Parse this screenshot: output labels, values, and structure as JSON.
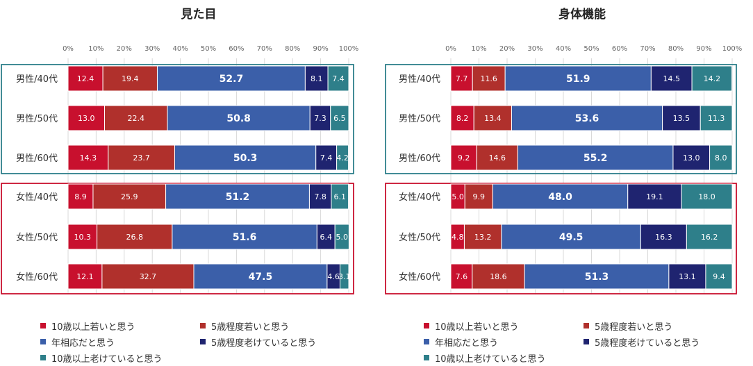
{
  "chart_data": [
    {
      "type": "bar",
      "orientation": "horizontal",
      "stacked": true,
      "title": "見た目",
      "categories": [
        "男性/40代",
        "男性/50代",
        "男性/60代",
        "女性/40代",
        "女性/50代",
        "女性/60代"
      ],
      "groups": [
        {
          "name": "男性",
          "categories": [
            "男性/40代",
            "男性/50代",
            "男性/60代"
          ],
          "border_color": "#2e7f8a"
        },
        {
          "name": "女性",
          "categories": [
            "女性/40代",
            "女性/50代",
            "女性/60代"
          ],
          "border_color": "#c8102e"
        }
      ],
      "x_ticks": [
        "0%",
        "10%",
        "20%",
        "30%",
        "40%",
        "50%",
        "60%",
        "70%",
        "80%",
        "90%",
        "100%"
      ],
      "xlim": [
        0,
        100
      ],
      "series": [
        {
          "name": "10歳以上若いと思う",
          "color": "#c8102e",
          "values": [
            12.4,
            13.0,
            14.3,
            8.9,
            10.3,
            12.1
          ],
          "labels": [
            "12.4",
            "13.0",
            "14.3",
            "8.9",
            "10.3",
            "12.1"
          ]
        },
        {
          "name": "5歳程度若いと思う",
          "color": "#b0302c",
          "values": [
            19.4,
            22.4,
            23.7,
            25.9,
            26.8,
            32.7
          ],
          "labels": [
            "19.4",
            "22.4",
            "23.7",
            "25.9",
            "26.8",
            "32.7"
          ]
        },
        {
          "name": "年相応だと思う",
          "color": "#3b5fa9",
          "values": [
            52.7,
            50.8,
            50.3,
            51.2,
            51.6,
            47.5
          ],
          "labels": [
            "52.7",
            "50.8",
            "50.3",
            "51.2",
            "51.6",
            "47.5"
          ]
        },
        {
          "name": "5歳程度老けていると思う",
          "color": "#1f2470",
          "values": [
            8.1,
            7.3,
            7.4,
            7.8,
            6.4,
            4.6
          ],
          "labels": [
            "8.1",
            "7.3",
            "7.4",
            "7.8",
            "6.4",
            "4.6"
          ]
        },
        {
          "name": "10歳以上老けていると思う",
          "color": "#2e7f8a",
          "values": [
            7.4,
            6.5,
            4.2,
            6.1,
            5.0,
            3.1
          ],
          "labels": [
            "7.4",
            "6.5",
            "4.2",
            "6.1",
            "5.0",
            "3.1"
          ]
        }
      ]
    },
    {
      "type": "bar",
      "orientation": "horizontal",
      "stacked": true,
      "title": "身体機能",
      "categories": [
        "男性/40代",
        "男性/50代",
        "男性/60代",
        "女性/40代",
        "女性/50代",
        "女性/60代"
      ],
      "groups": [
        {
          "name": "男性",
          "categories": [
            "男性/40代",
            "男性/50代",
            "男性/60代"
          ],
          "border_color": "#2e7f8a"
        },
        {
          "name": "女性",
          "categories": [
            "女性/40代",
            "女性/50代",
            "女性/60代"
          ],
          "border_color": "#c8102e"
        }
      ],
      "x_ticks": [
        "0%",
        "10%",
        "20%",
        "30%",
        "40%",
        "50%",
        "60%",
        "70%",
        "80%",
        "90%",
        "100%"
      ],
      "xlim": [
        0,
        100
      ],
      "series": [
        {
          "name": "10歳以上若いと思う",
          "color": "#c8102e",
          "values": [
            7.7,
            8.2,
            9.2,
            5.0,
            4.8,
            7.6
          ],
          "labels": [
            "7.7",
            "8.2",
            "9.2",
            "5.0",
            "4.8",
            "7.6"
          ]
        },
        {
          "name": "5歳程度若いと思う",
          "color": "#b0302c",
          "values": [
            11.6,
            13.4,
            14.6,
            9.9,
            13.2,
            18.6
          ],
          "labels": [
            "11.6",
            "13.4",
            "14.6",
            "9.9",
            "13.2",
            "18.6"
          ]
        },
        {
          "name": "年相応だと思う",
          "color": "#3b5fa9",
          "values": [
            51.9,
            53.6,
            55.2,
            48.0,
            49.5,
            51.3
          ],
          "labels": [
            "51.9",
            "53.6",
            "55.2",
            "48.0",
            "49.5",
            "51.3"
          ]
        },
        {
          "name": "5歳程度老けていると思う",
          "color": "#1f2470",
          "values": [
            14.5,
            13.5,
            13.0,
            19.1,
            16.3,
            13.1
          ],
          "labels": [
            "14.5",
            "13.5",
            "13.0",
            "19.1",
            "16.3",
            "13.1"
          ]
        },
        {
          "name": "10歳以上老けていると思う",
          "color": "#2e7f8a",
          "values": [
            14.2,
            11.3,
            8.0,
            18.0,
            16.2,
            9.4
          ],
          "labels": [
            "14.2",
            "11.3",
            "8.0",
            "18.0",
            "16.2",
            "9.4"
          ]
        }
      ]
    }
  ]
}
